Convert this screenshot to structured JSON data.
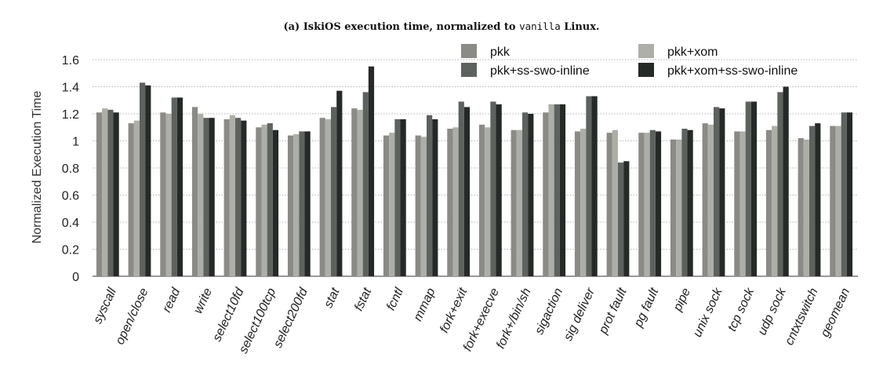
{
  "chart_data": {
    "type": "bar",
    "title_parts": [
      "(a) IskiOS execution time, normalized to ",
      "vanilla",
      " Linux."
    ],
    "ylabel": "Normalized Execution Time",
    "xlabel": "",
    "ylim": [
      0,
      1.6
    ],
    "yticks": [
      "0",
      "0.2",
      "0.4",
      "0.6",
      "0.8",
      "1",
      "1.2",
      "1.4",
      "1.6"
    ],
    "grid": true,
    "legend_position": "top-right",
    "categories": [
      "syscall",
      "open/close",
      "read",
      "write",
      "select10fd",
      "select100tcp",
      "select200fd",
      "stat",
      "fstat",
      "fcntl",
      "mmap",
      "fork+exit",
      "fork+execve",
      "fork+/bin/sh",
      "sigaction",
      "sig deliver",
      "prot fault",
      "pg fault",
      "pipe",
      "unix sock",
      "tcp sock",
      "udp sock",
      "cntxtswitch",
      "geomean"
    ],
    "series": [
      {
        "name": "pkk",
        "color": "#8a8a86",
        "values": [
          1.21,
          1.13,
          1.21,
          1.25,
          1.16,
          1.1,
          1.04,
          1.17,
          1.24,
          1.04,
          1.04,
          1.09,
          1.12,
          1.08,
          1.21,
          1.07,
          1.06,
          1.06,
          1.01,
          1.13,
          1.07,
          1.08,
          1.02,
          1.11
        ]
      },
      {
        "name": "pkk+xom",
        "color": "#aeaea8",
        "values": [
          1.24,
          1.15,
          1.2,
          1.2,
          1.19,
          1.12,
          1.05,
          1.16,
          1.23,
          1.06,
          1.03,
          1.1,
          1.1,
          1.08,
          1.27,
          1.09,
          1.08,
          1.06,
          1.01,
          1.12,
          1.07,
          1.11,
          1.01,
          1.11
        ]
      },
      {
        "name": "pkk+ss-swo-inline",
        "color": "#5e625e",
        "values": [
          1.23,
          1.43,
          1.32,
          1.17,
          1.17,
          1.13,
          1.07,
          1.25,
          1.36,
          1.16,
          1.19,
          1.29,
          1.29,
          1.21,
          1.27,
          1.33,
          0.84,
          1.08,
          1.09,
          1.25,
          1.29,
          1.36,
          1.11,
          1.21
        ]
      },
      {
        "name": "pkk+xom+ss-swo-inline",
        "color": "#262a26",
        "values": [
          1.21,
          1.41,
          1.32,
          1.17,
          1.15,
          1.08,
          1.07,
          1.37,
          1.55,
          1.16,
          1.16,
          1.25,
          1.27,
          1.2,
          1.27,
          1.33,
          0.85,
          1.07,
          1.08,
          1.24,
          1.29,
          1.4,
          1.13,
          1.21
        ]
      }
    ]
  }
}
